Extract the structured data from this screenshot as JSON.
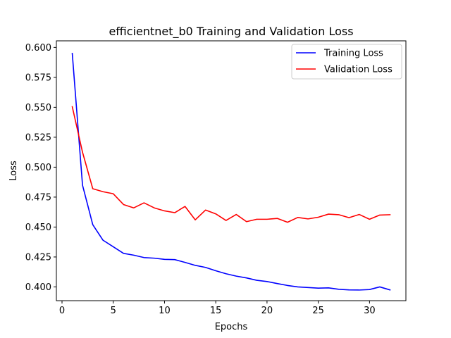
{
  "chart_data": {
    "type": "line",
    "title": "efficientnet_b0 Training and Validation Loss",
    "xlabel": "Epochs",
    "ylabel": "Loss",
    "xlim": [
      -0.55,
      33.55
    ],
    "ylim": [
      0.3885,
      0.6055
    ],
    "xticks": [
      0,
      5,
      10,
      15,
      20,
      25,
      30
    ],
    "yticks": [
      0.4,
      0.425,
      0.45,
      0.475,
      0.5,
      0.525,
      0.55,
      0.575,
      0.6
    ],
    "ytick_labels": [
      "0.400",
      "0.425",
      "0.450",
      "0.475",
      "0.500",
      "0.525",
      "0.550",
      "0.575",
      "0.600"
    ],
    "grid": false,
    "legend_position": "top-right",
    "x": [
      1,
      2,
      3,
      4,
      5,
      6,
      7,
      8,
      9,
      10,
      11,
      12,
      13,
      14,
      15,
      16,
      17,
      18,
      19,
      20,
      21,
      22,
      23,
      24,
      25,
      26,
      27,
      28,
      29,
      30,
      31,
      32
    ],
    "series": [
      {
        "name": "Training Loss",
        "color": "#0000ff",
        "values": [
          0.595,
          0.485,
          0.452,
          0.439,
          0.4335,
          0.428,
          0.4265,
          0.4245,
          0.424,
          0.423,
          0.4228,
          0.4205,
          0.418,
          0.4163,
          0.4135,
          0.411,
          0.409,
          0.4075,
          0.4055,
          0.4045,
          0.4028,
          0.4012,
          0.4,
          0.3995,
          0.399,
          0.3992,
          0.398,
          0.3975,
          0.3974,
          0.3978,
          0.4,
          0.3975
        ]
      },
      {
        "name": "Validation Loss",
        "color": "#ff0000",
        "values": [
          0.5505,
          0.5125,
          0.482,
          0.4795,
          0.4778,
          0.4688,
          0.466,
          0.4702,
          0.466,
          0.4635,
          0.462,
          0.4672,
          0.456,
          0.4642,
          0.461,
          0.4555,
          0.4605,
          0.4545,
          0.4565,
          0.4565,
          0.4572,
          0.454,
          0.458,
          0.4568,
          0.4582,
          0.4608,
          0.4603,
          0.4578,
          0.4605,
          0.4565,
          0.46,
          0.4603
        ]
      }
    ]
  }
}
